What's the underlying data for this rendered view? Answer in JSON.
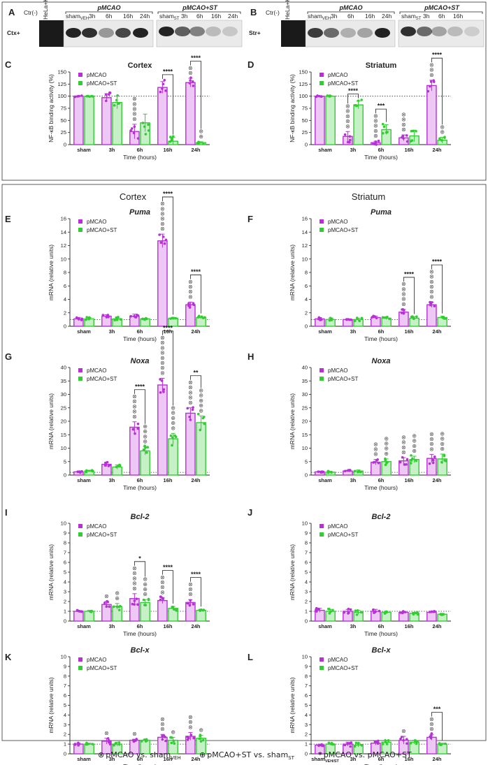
{
  "colors": {
    "pmcao": "#b630d6",
    "pmcao_fill": "#edc8f5",
    "st": "#33cc33",
    "st_fill": "#c6f0c6",
    "sym": "#555555"
  },
  "sections": {
    "cortex": "Cortex",
    "striatum": "Striatum"
  },
  "blots": [
    {
      "letter": "A",
      "row_label": "Ctx+",
      "ctr": "Ctr(-)",
      "hela": "HeLa+KA",
      "group1": "pMCAO",
      "group2": "pMCAO+ST",
      "lanes1": [
        "sham",
        "VEH",
        "3h",
        "6h",
        "16h",
        "24h"
      ],
      "lanes2": [
        "sham",
        "ST",
        "3h",
        "6h",
        "16h",
        "24h"
      ]
    },
    {
      "letter": "B",
      "row_label": "Str+",
      "ctr": "Ctr(-)",
      "hela": "HeLa+KA",
      "group1": "pMCAO",
      "group2": "pMCAO+ST",
      "lanes1": [
        "sham",
        "VEH",
        "3h",
        "6h",
        "16h",
        "24h"
      ],
      "lanes2": [
        "sham",
        "ST",
        "3h",
        "6h",
        "16h"
      ]
    }
  ],
  "legend_labels": [
    "pMCAO",
    "pMCAO+ST"
  ],
  "footer": {
    "sym1": "⊗",
    "t1": "pMCAO vs. sham",
    "s1": "VEH",
    "sym2": "⊕",
    "t2": "pMCAO+ST vs. sham",
    "s2": "ST",
    "sym3": "*",
    "t3": "pMCAO vs. pMCAO+ST"
  },
  "chart_data": [
    {
      "letter": "C",
      "title": "Cortex",
      "italic": false,
      "type": "bar",
      "ylabel": "NF-κB binding activity (%)",
      "xlabel": "Time (hours)",
      "ylim": [
        0,
        150
      ],
      "yticks": [
        0,
        25,
        50,
        75,
        100,
        125,
        150
      ],
      "refline": 100,
      "categories": [
        "sham",
        "3h",
        "6h",
        "16h",
        "24h"
      ],
      "series": [
        {
          "name": "pMCAO",
          "values": [
            100,
            97,
            27,
            118,
            128
          ],
          "err": [
            1,
            8,
            15,
            12,
            9
          ]
        },
        {
          "name": "pMCAO+ST",
          "values": [
            100,
            87,
            45,
            7,
            4
          ],
          "err": [
            1,
            13,
            18,
            8,
            2
          ]
        }
      ],
      "sym_pmcao": [
        0,
        0,
        5,
        0,
        2
      ],
      "sym_st": [
        0,
        0,
        0,
        0,
        2
      ],
      "comparisons": [
        {
          "cat": 3,
          "label": "****"
        },
        {
          "cat": 4,
          "label": "****"
        }
      ]
    },
    {
      "letter": "D",
      "title": "Striatum",
      "italic": false,
      "type": "bar",
      "ylabel": "NF-κB binding activity (%)",
      "xlabel": "Time (hours)",
      "ylim": [
        0,
        150
      ],
      "yticks": [
        0,
        25,
        50,
        75,
        100,
        125,
        150
      ],
      "refline": 100,
      "categories": [
        "sham",
        "3h",
        "6h",
        "16h",
        "24h"
      ],
      "series": [
        {
          "name": "pMCAO",
          "values": [
            100,
            17,
            4,
            14,
            122
          ],
          "err": [
            1,
            10,
            3,
            6,
            11
          ]
        },
        {
          "name": "pMCAO+ST",
          "values": [
            100,
            82,
            31,
            18,
            9
          ],
          "err": [
            1,
            8,
            10,
            12,
            6
          ]
        }
      ],
      "sym_pmcao": [
        0,
        5,
        5,
        4,
        3
      ],
      "sym_st": [
        0,
        0,
        0,
        0,
        2
      ],
      "comparisons": [
        {
          "cat": 1,
          "label": "****"
        },
        {
          "cat": 2,
          "label": "***"
        },
        {
          "cat": 4,
          "label": "****"
        }
      ]
    },
    {
      "letter": "E",
      "title": "Puma",
      "italic": true,
      "type": "bar",
      "ylabel": "mRNA (relative units)",
      "xlabel": "Time (hours)",
      "ylim": [
        0,
        16
      ],
      "yticks": [
        0,
        2,
        4,
        6,
        8,
        10,
        12,
        14,
        16
      ],
      "refline": 1,
      "categories": [
        "sham",
        "3h",
        "6h",
        "16h",
        "24h"
      ],
      "series": [
        {
          "name": "pMCAO",
          "values": [
            1.1,
            1.5,
            1.5,
            12.7,
            3.2
          ],
          "err": [
            0.2,
            0.2,
            0.3,
            1.0,
            0.4
          ]
        },
        {
          "name": "pMCAO+ST",
          "values": [
            1.1,
            1.1,
            1.1,
            1.2,
            1.3
          ],
          "err": [
            0.2,
            0.2,
            0.1,
            0.1,
            0.2
          ]
        }
      ],
      "sym_pmcao": [
        0,
        0,
        0,
        6,
        4
      ],
      "sym_st": [
        0,
        0,
        0,
        0,
        0
      ],
      "comparisons": [
        {
          "cat": 3,
          "label": "****"
        },
        {
          "cat": 4,
          "label": "****"
        }
      ]
    },
    {
      "letter": "F",
      "title": "Puma",
      "italic": true,
      "type": "bar",
      "ylabel": "mRNA (relative units)",
      "xlabel": "Time (hours)",
      "ylim": [
        0,
        16
      ],
      "yticks": [
        0,
        2,
        4,
        6,
        8,
        10,
        12,
        14,
        16
      ],
      "refline": 1,
      "categories": [
        "sham",
        "3h",
        "6h",
        "16h",
        "24h"
      ],
      "series": [
        {
          "name": "pMCAO",
          "values": [
            1.1,
            1.0,
            1.3,
            2.1,
            3.2
          ],
          "err": [
            0.2,
            0.1,
            0.2,
            0.4,
            0.4
          ]
        },
        {
          "name": "pMCAO+ST",
          "values": [
            1.0,
            1.0,
            1.2,
            1.2,
            1.3
          ],
          "err": [
            0.2,
            0.2,
            0.2,
            0.2,
            0.2
          ]
        }
      ],
      "sym_pmcao": [
        0,
        0,
        0,
        5,
        6
      ],
      "sym_st": [
        0,
        0,
        0,
        0,
        0
      ],
      "comparisons": [
        {
          "cat": 3,
          "label": "****"
        },
        {
          "cat": 4,
          "label": "****"
        }
      ]
    },
    {
      "letter": "G",
      "title": "Noxa",
      "italic": true,
      "type": "bar",
      "ylabel": "mRNA (relative units)",
      "xlabel": "Time (hours)",
      "ylim": [
        0,
        40
      ],
      "yticks": [
        0,
        5,
        10,
        15,
        20,
        25,
        30,
        35,
        40
      ],
      "refline": 1,
      "categories": [
        "sham",
        "3h",
        "6h",
        "16h",
        "24h"
      ],
      "series": [
        {
          "name": "pMCAO",
          "values": [
            1.2,
            4.0,
            17.8,
            33.5,
            23.0
          ],
          "err": [
            0.3,
            0.8,
            2.0,
            2.5,
            2.0
          ]
        },
        {
          "name": "pMCAO+ST",
          "values": [
            1.5,
            3.0,
            9.0,
            13.5,
            19.5
          ],
          "err": [
            0.3,
            0.8,
            1.5,
            2.0,
            2.5
          ]
        }
      ],
      "sym_pmcao": [
        0,
        0,
        5,
        8,
        5
      ],
      "sym_st": [
        0,
        0,
        4,
        5,
        5
      ],
      "comparisons": [
        {
          "cat": 2,
          "label": "****"
        },
        {
          "cat": 3,
          "label": "****"
        },
        {
          "cat": 4,
          "label": "**"
        }
      ]
    },
    {
      "letter": "H",
      "title": "Noxa",
      "italic": true,
      "type": "bar",
      "ylabel": "mRNA (relative units)",
      "xlabel": "Time (hours)",
      "ylim": [
        0,
        40
      ],
      "yticks": [
        0,
        5,
        10,
        15,
        20,
        25,
        30,
        35,
        40
      ],
      "refline": 1,
      "categories": [
        "sham",
        "3h",
        "6h",
        "16h",
        "24h"
      ],
      "series": [
        {
          "name": "pMCAO",
          "values": [
            1.2,
            1.5,
            4.8,
            5.3,
            6.2
          ],
          "err": [
            0.3,
            0.3,
            1.0,
            1.2,
            1.5
          ]
        },
        {
          "name": "pMCAO+ST",
          "values": [
            1.1,
            1.5,
            5.0,
            5.8,
            6.0
          ],
          "err": [
            0.3,
            0.4,
            1.0,
            1.2,
            1.8
          ]
        }
      ],
      "sym_pmcao": [
        0,
        0,
        3,
        4,
        4
      ],
      "sym_st": [
        0,
        0,
        4,
        4,
        4
      ],
      "comparisons": []
    },
    {
      "letter": "I",
      "title": "Bcl-2",
      "italic": true,
      "type": "bar",
      "ylabel": "mRNA (relative units)",
      "xlabel": "Time (hours)",
      "ylim": [
        0,
        10
      ],
      "yticks": [
        0,
        1,
        2,
        3,
        4,
        5,
        6,
        7,
        8,
        9,
        10
      ],
      "refline": 1,
      "categories": [
        "sham",
        "3h",
        "6h",
        "16h",
        "24h"
      ],
      "series": [
        {
          "name": "pMCAO",
          "values": [
            1.0,
            1.7,
            2.3,
            2.1,
            1.9
          ],
          "err": [
            0.1,
            0.3,
            0.5,
            0.3,
            0.3
          ]
        },
        {
          "name": "pMCAO+ST",
          "values": [
            1.0,
            1.5,
            1.9,
            1.3,
            1.1
          ],
          "err": [
            0.1,
            0.3,
            0.3,
            0.2,
            0.1
          ]
        }
      ],
      "sym_pmcao": [
        0,
        1,
        5,
        4,
        3
      ],
      "sym_st": [
        0,
        2,
        4,
        0,
        0
      ],
      "comparisons": [
        {
          "cat": 2,
          "label": "*"
        },
        {
          "cat": 3,
          "label": "****"
        },
        {
          "cat": 4,
          "label": "****"
        }
      ]
    },
    {
      "letter": "J",
      "title": "Bcl-2",
      "italic": true,
      "type": "bar",
      "ylabel": "mRNA (relative units)",
      "xlabel": "Time (hours)",
      "ylim": [
        0,
        10
      ],
      "yticks": [
        0,
        1,
        2,
        3,
        4,
        5,
        6,
        7,
        8,
        9,
        10
      ],
      "refline": 1,
      "categories": [
        "sham",
        "3h",
        "6h",
        "16h",
        "24h"
      ],
      "series": [
        {
          "name": "pMCAO",
          "values": [
            1.1,
            1.0,
            1.0,
            0.9,
            0.9
          ],
          "err": [
            0.2,
            0.2,
            0.2,
            0.1,
            0.1
          ]
        },
        {
          "name": "pMCAO+ST",
          "values": [
            1.0,
            0.9,
            0.9,
            0.8,
            0.7
          ],
          "err": [
            0.2,
            0.2,
            0.1,
            0.1,
            0.1
          ]
        }
      ],
      "sym_pmcao": [
        0,
        0,
        0,
        0,
        0
      ],
      "sym_st": [
        0,
        0,
        0,
        0,
        0
      ],
      "comparisons": []
    },
    {
      "letter": "K",
      "title": "Bcl-x",
      "italic": true,
      "type": "bar",
      "ylabel": "mRNA (relative units)",
      "xlabel": "Time (hours)",
      "ylim": [
        0,
        10
      ],
      "yticks": [
        0,
        1,
        2,
        3,
        4,
        5,
        6,
        7,
        8,
        9,
        10
      ],
      "refline": 1,
      "categories": [
        "sham",
        "3h",
        "6h",
        "16h",
        "24h"
      ],
      "series": [
        {
          "name": "pMCAO",
          "values": [
            1.0,
            1.3,
            1.4,
            1.7,
            1.8
          ],
          "err": [
            0.1,
            0.3,
            0.1,
            0.3,
            0.4
          ]
        },
        {
          "name": "pMCAO+ST",
          "values": [
            1.0,
            1.0,
            1.4,
            1.4,
            1.6
          ],
          "err": [
            0.1,
            0.2,
            0.1,
            0.3,
            0.3
          ]
        }
      ],
      "sym_pmcao": [
        0,
        1,
        1,
        3,
        3
      ],
      "sym_st": [
        0,
        0,
        0,
        1,
        1
      ],
      "comparisons": []
    },
    {
      "letter": "L",
      "title": "Bcl-x",
      "italic": true,
      "type": "bar",
      "ylabel": "mRNA (relative units)",
      "xlabel": "Time (hours)",
      "ylim": [
        0,
        10
      ],
      "yticks": [
        0,
        1,
        2,
        3,
        4,
        5,
        6,
        7,
        8,
        9,
        10
      ],
      "refline": 1,
      "categories": [
        "sham",
        "3h",
        "6h",
        "16h",
        "24h"
      ],
      "first_cat_sub": "VEH/ST",
      "series": [
        {
          "name": "pMCAO",
          "values": [
            0.9,
            1.0,
            1.1,
            1.4,
            1.7
          ],
          "err": [
            0.1,
            0.2,
            0.2,
            0.4,
            0.3
          ]
        },
        {
          "name": "pMCAO+ST",
          "values": [
            1.0,
            0.9,
            1.2,
            1.2,
            1.0
          ],
          "err": [
            0.1,
            0.2,
            0.2,
            0.2,
            0.1
          ]
        }
      ],
      "sym_pmcao": [
        0,
        0,
        0,
        1,
        3
      ],
      "sym_st": [
        0,
        0,
        0,
        0,
        0
      ],
      "comparisons": [
        {
          "cat": 4,
          "label": "***"
        }
      ]
    }
  ]
}
